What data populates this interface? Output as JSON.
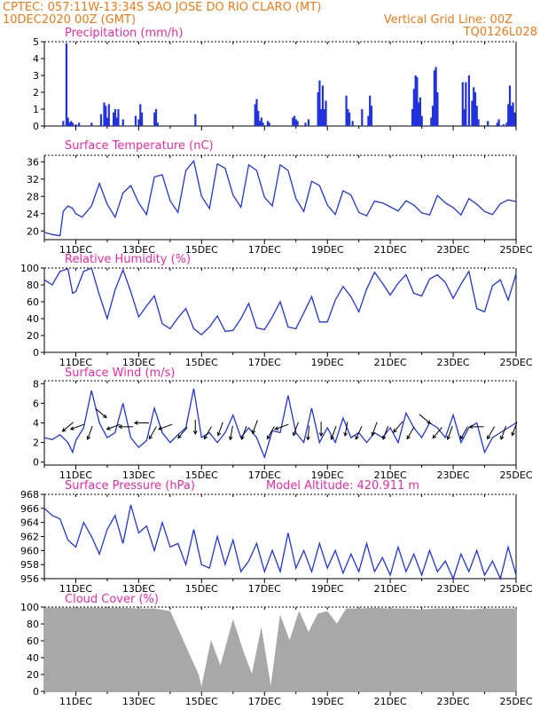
{
  "header": {
    "line1_left": "CPTEC:   057:11W-13:34S  SAO JOSE DO RIO CLARO (MT)",
    "line2_left": "10DEC2020 00Z (GMT)",
    "line2_right": "Vertical Grid Line: 00Z",
    "line3_right": "TQ0126L028"
  },
  "colors": {
    "header": "#f07a1a",
    "panel_title": "#ee2aa0",
    "series": "#2233dd",
    "cloud": "#a8a8a8",
    "frame": "#000000"
  },
  "x_axis": {
    "start": "10DEC2020 00Z",
    "end": "25DEC2020 00Z",
    "tick_labels": [
      "11DEC",
      "13DEC",
      "15DEC",
      "17DEC",
      "19DEC",
      "21DEC",
      "23DEC",
      "25DEC"
    ]
  },
  "model_altitude": "Model Altitude: 420.911 m",
  "chart_data": [
    {
      "type": "bar",
      "title": "Precipitation (mm/h)",
      "ylim": [
        0,
        5
      ],
      "yticks": [
        0,
        1,
        2,
        3,
        4,
        5
      ],
      "x": [
        0.6,
        0.7,
        0.75,
        0.8,
        0.85,
        0.9,
        1.0,
        1.1,
        1.5,
        1.8,
        1.9,
        1.95,
        2.0,
        2.05,
        2.2,
        2.25,
        2.3,
        2.35,
        2.5,
        2.9,
        3.0,
        3.05,
        3.1,
        3.5,
        3.55,
        3.6,
        4.8,
        6.7,
        6.75,
        6.8,
        6.85,
        6.9,
        6.95,
        7.1,
        7.15,
        7.9,
        7.95,
        8.0,
        8.05,
        8.3,
        8.4,
        8.7,
        8.75,
        8.8,
        8.85,
        8.9,
        8.95,
        9.6,
        9.65,
        9.7,
        9.8,
        10.1,
        10.3,
        10.35,
        10.4,
        11.7,
        11.75,
        11.8,
        11.85,
        11.9,
        11.95,
        12.0,
        12.3,
        12.35,
        12.4,
        12.45,
        12.5,
        13.3,
        13.35,
        13.4,
        13.5,
        13.6,
        13.65,
        13.7,
        13.75,
        13.8,
        14.1,
        14.4,
        14.45,
        14.6,
        14.7,
        14.75,
        14.8,
        14.85,
        14.9,
        14.95
      ],
      "values": [
        0.3,
        4.9,
        0.5,
        0.2,
        0.3,
        0.2,
        0.1,
        0.2,
        0.2,
        0.7,
        1.4,
        1.2,
        0.5,
        1.3,
        0.8,
        1.0,
        0.5,
        1.0,
        0.4,
        0.6,
        0.4,
        1.3,
        0.8,
        0.8,
        1.0,
        0.2,
        0.7,
        1.3,
        1.6,
        0.9,
        0.3,
        0.5,
        0.2,
        0.3,
        0.2,
        0.5,
        0.6,
        0.4,
        0.3,
        0.2,
        0.4,
        2.0,
        2.7,
        1.0,
        2.4,
        1.0,
        1.5,
        1.8,
        1.0,
        0.8,
        0.3,
        1.0,
        0.6,
        1.8,
        1.2,
        1.0,
        2.2,
        3.0,
        2.9,
        1.4,
        1.7,
        0.6,
        0.5,
        1.2,
        3.3,
        3.5,
        2.0,
        2.6,
        1.0,
        2.6,
        3.0,
        1.5,
        2.3,
        2.0,
        1.2,
        0.4,
        0.3,
        0.2,
        0.4,
        0.1,
        0.2,
        1.3,
        2.4,
        1.2,
        1.4,
        0.8
      ]
    },
    {
      "type": "line",
      "title": "Surface Temperature (nC)",
      "ylim": [
        18,
        37.5
      ],
      "yticks": [
        20,
        24,
        28,
        32,
        36
      ],
      "x": [
        0.0,
        0.25,
        0.5,
        0.6,
        0.75,
        0.9,
        1.0,
        1.2,
        1.5,
        1.75,
        2.0,
        2.25,
        2.5,
        2.75,
        3.0,
        3.25,
        3.5,
        3.75,
        4.0,
        4.25,
        4.5,
        4.75,
        5.0,
        5.25,
        5.5,
        5.75,
        6.0,
        6.25,
        6.5,
        6.75,
        7.0,
        7.25,
        7.5,
        7.75,
        8.0,
        8.25,
        8.5,
        8.75,
        9.0,
        9.25,
        9.5,
        9.75,
        10.0,
        10.25,
        10.5,
        10.75,
        11.0,
        11.25,
        11.5,
        11.75,
        12.0,
        12.25,
        12.5,
        12.75,
        13.0,
        13.25,
        13.5,
        13.75,
        14.0,
        14.25,
        14.5,
        14.75,
        15.0
      ],
      "values": [
        19.7,
        19.2,
        18.9,
        24.5,
        25.8,
        25.2,
        24.0,
        23.2,
        25.8,
        31.0,
        26.2,
        23.2,
        28.8,
        30.5,
        26.5,
        23.8,
        32.5,
        33.0,
        27.0,
        24.3,
        34.0,
        36.2,
        28.0,
        25.2,
        35.5,
        34.5,
        28.3,
        25.5,
        35.3,
        34.0,
        27.8,
        25.8,
        35.3,
        34.0,
        27.5,
        24.5,
        31.5,
        30.5,
        26.0,
        23.8,
        29.3,
        28.3,
        24.3,
        23.5,
        26.9,
        26.5,
        25.6,
        24.6,
        27.0,
        26.0,
        24.2,
        23.7,
        28.2,
        26.5,
        25.4,
        23.7,
        27.5,
        26.2,
        24.5,
        23.8,
        26.3,
        27.2,
        26.8
      ]
    },
    {
      "type": "line",
      "title": "Relative Humidity (%)",
      "ylim": [
        0,
        100
      ],
      "yticks": [
        0,
        20,
        40,
        60,
        80,
        100
      ],
      "x": [
        0.0,
        0.25,
        0.5,
        0.75,
        0.9,
        1.0,
        1.25,
        1.5,
        1.75,
        2.0,
        2.25,
        2.5,
        2.75,
        3.0,
        3.25,
        3.5,
        3.75,
        4.0,
        4.25,
        4.5,
        4.75,
        5.0,
        5.25,
        5.5,
        5.75,
        6.0,
        6.25,
        6.5,
        6.75,
        7.0,
        7.25,
        7.5,
        7.75,
        8.0,
        8.25,
        8.5,
        8.75,
        9.0,
        9.25,
        9.5,
        9.75,
        10.0,
        10.25,
        10.5,
        10.75,
        11.0,
        11.25,
        11.5,
        11.75,
        12.0,
        12.25,
        12.5,
        12.75,
        13.0,
        13.25,
        13.5,
        13.75,
        14.0,
        14.25,
        14.5,
        14.75,
        15.0
      ],
      "values": [
        86,
        80,
        96,
        99,
        70,
        72,
        96,
        100,
        68,
        40,
        74,
        98,
        72,
        42,
        55,
        67,
        34,
        28,
        41,
        52,
        28,
        21,
        30,
        43,
        25,
        26,
        40,
        58,
        29,
        27,
        42,
        60,
        30,
        28,
        47,
        66,
        36,
        36,
        62,
        78,
        66,
        48,
        75,
        95,
        82,
        68,
        82,
        92,
        70,
        67,
        87,
        92,
        83,
        64,
        81,
        96,
        52,
        48,
        79,
        86,
        62,
        93
      ]
    },
    {
      "type": "line",
      "title": "Surface Wind (m/s)",
      "ylim": [
        -0.3,
        8.3
      ],
      "yticks": [
        0,
        2,
        4,
        6,
        8
      ],
      "x": [
        0.0,
        0.25,
        0.5,
        0.75,
        0.9,
        1.0,
        1.25,
        1.5,
        1.75,
        2.0,
        2.25,
        2.5,
        2.75,
        3.0,
        3.25,
        3.5,
        3.75,
        4.0,
        4.25,
        4.5,
        4.75,
        5.0,
        5.25,
        5.5,
        5.75,
        6.0,
        6.25,
        6.5,
        6.75,
        7.0,
        7.25,
        7.5,
        7.75,
        8.0,
        8.25,
        8.5,
        8.75,
        9.0,
        9.25,
        9.5,
        9.75,
        10.0,
        10.25,
        10.5,
        10.75,
        11.0,
        11.25,
        11.5,
        11.75,
        12.0,
        12.25,
        12.5,
        12.75,
        13.0,
        13.25,
        13.5,
        13.75,
        14.0,
        14.25,
        14.5,
        14.75,
        15.0
      ],
      "values": [
        2.5,
        2.3,
        2.8,
        2.0,
        1.0,
        2.2,
        3.5,
        7.3,
        4.0,
        2.5,
        3.0,
        6.0,
        2.5,
        1.5,
        2.2,
        5.5,
        3.0,
        2.0,
        2.8,
        3.5,
        7.5,
        2.5,
        3.0,
        2.0,
        3.0,
        4.8,
        2.5,
        3.5,
        2.5,
        0.5,
        3.2,
        3.0,
        6.8,
        3.0,
        2.0,
        5.5,
        2.0,
        3.5,
        2.0,
        4.5,
        2.5,
        3.0,
        2.0,
        3.0,
        2.5,
        3.5,
        2.0,
        5.0,
        3.5,
        2.5,
        4.0,
        3.5,
        2.5,
        4.8,
        2.0,
        3.5,
        4.0,
        1.0,
        2.5,
        3.0,
        3.5,
        4.0
      ],
      "arrows": [
        {
          "x": 0.75,
          "y": 3.6,
          "dir_deg": 220
        },
        {
          "x": 1.05,
          "y": 3.6,
          "dir_deg": 200
        },
        {
          "x": 1.45,
          "y": 3.0,
          "dir_deg": 250
        },
        {
          "x": 1.8,
          "y": 5.0,
          "dir_deg": 320
        },
        {
          "x": 2.2,
          "y": 3.6,
          "dir_deg": 200
        },
        {
          "x": 2.6,
          "y": 3.6,
          "dir_deg": 180
        },
        {
          "x": 3.1,
          "y": 4.0,
          "dir_deg": 180
        },
        {
          "x": 3.45,
          "y": 3.0,
          "dir_deg": 240
        },
        {
          "x": 3.85,
          "y": 3.6,
          "dir_deg": 200
        },
        {
          "x": 4.4,
          "y": 3.0,
          "dir_deg": 230
        },
        {
          "x": 4.8,
          "y": 3.6,
          "dir_deg": 270
        },
        {
          "x": 5.2,
          "y": 3.0,
          "dir_deg": 240
        },
        {
          "x": 5.6,
          "y": 3.4,
          "dir_deg": 250
        },
        {
          "x": 5.95,
          "y": 3.0,
          "dir_deg": 260
        },
        {
          "x": 6.35,
          "y": 3.0,
          "dir_deg": 250
        },
        {
          "x": 6.7,
          "y": 3.6,
          "dir_deg": 250
        },
        {
          "x": 7.2,
          "y": 3.0,
          "dir_deg": 240
        },
        {
          "x": 7.55,
          "y": 3.6,
          "dir_deg": 200
        },
        {
          "x": 8.0,
          "y": 3.4,
          "dir_deg": 250
        },
        {
          "x": 8.4,
          "y": 3.0,
          "dir_deg": 265
        },
        {
          "x": 8.8,
          "y": 3.4,
          "dir_deg": 270
        },
        {
          "x": 9.2,
          "y": 3.0,
          "dir_deg": 250
        },
        {
          "x": 9.6,
          "y": 3.4,
          "dir_deg": 260
        },
        {
          "x": 10.0,
          "y": 3.0,
          "dir_deg": 245
        },
        {
          "x": 10.5,
          "y": 3.4,
          "dir_deg": 250
        },
        {
          "x": 10.85,
          "y": 3.0,
          "dir_deg": 250
        },
        {
          "x": 11.25,
          "y": 3.6,
          "dir_deg": 230
        },
        {
          "x": 11.65,
          "y": 3.0,
          "dir_deg": 240
        },
        {
          "x": 12.1,
          "y": 4.4,
          "dir_deg": 320
        },
        {
          "x": 12.5,
          "y": 3.0,
          "dir_deg": 230
        },
        {
          "x": 12.9,
          "y": 3.0,
          "dir_deg": 250
        },
        {
          "x": 13.35,
          "y": 3.0,
          "dir_deg": 240
        },
        {
          "x": 13.75,
          "y": 3.6,
          "dir_deg": 180
        },
        {
          "x": 14.2,
          "y": 3.0,
          "dir_deg": 240
        },
        {
          "x": 14.6,
          "y": 3.0,
          "dir_deg": 250
        },
        {
          "x": 14.95,
          "y": 3.4,
          "dir_deg": 250
        }
      ]
    },
    {
      "type": "line",
      "title": "Surface Pressure (hPa)",
      "ylim": [
        956,
        968
      ],
      "yticks": [
        956,
        958,
        960,
        962,
        964,
        966,
        968
      ],
      "x": [
        0.0,
        0.25,
        0.5,
        0.75,
        1.0,
        1.25,
        1.5,
        1.75,
        2.0,
        2.25,
        2.5,
        2.75,
        3.0,
        3.25,
        3.5,
        3.75,
        4.0,
        4.25,
        4.5,
        4.75,
        5.0,
        5.25,
        5.5,
        5.75,
        6.0,
        6.25,
        6.5,
        6.75,
        7.0,
        7.25,
        7.5,
        7.75,
        8.0,
        8.25,
        8.5,
        8.75,
        9.0,
        9.25,
        9.5,
        9.75,
        10.0,
        10.25,
        10.5,
        10.75,
        11.0,
        11.25,
        11.5,
        11.75,
        12.0,
        12.25,
        12.5,
        12.75,
        13.0,
        13.25,
        13.5,
        13.75,
        14.0,
        14.25,
        14.5,
        14.75,
        15.0
      ],
      "values": [
        966.0,
        965.0,
        964.5,
        961.5,
        960.5,
        964.0,
        962.0,
        959.5,
        963.0,
        965.0,
        961.0,
        966.5,
        962.5,
        963.5,
        960.0,
        964.0,
        960.5,
        961.0,
        958.0,
        963.0,
        958.0,
        957.5,
        962.0,
        958.0,
        961.5,
        957.0,
        958.5,
        961.0,
        957.0,
        960.0,
        957.0,
        962.5,
        957.5,
        960.0,
        957.0,
        961.0,
        957.5,
        960.0,
        956.8,
        959.5,
        957.0,
        961.0,
        957.0,
        959.0,
        956.5,
        960.5,
        957.0,
        959.5,
        956.5,
        960.0,
        957.0,
        958.5,
        956.0,
        959.5,
        957.0,
        960.0,
        956.5,
        958.5,
        956.0,
        960.5,
        956.5
      ]
    },
    {
      "type": "area",
      "title": "Cloud Cover (%)",
      "ylim": [
        0,
        100
      ],
      "yticks": [
        0,
        20,
        40,
        60,
        80,
        100
      ],
      "x": [
        0.0,
        0.5,
        1.0,
        1.5,
        2.0,
        2.5,
        3.0,
        3.5,
        4.0,
        4.3,
        4.6,
        4.9,
        5.0,
        5.3,
        5.6,
        6.0,
        6.3,
        6.6,
        6.9,
        7.2,
        7.5,
        7.8,
        8.1,
        8.4,
        8.7,
        9.0,
        9.3,
        9.6,
        10.0,
        10.5,
        11.0,
        11.5,
        12.0,
        12.5,
        13.0,
        13.5,
        14.0,
        14.5,
        15.0
      ],
      "values": [
        99,
        99,
        99,
        99,
        99,
        99,
        98,
        98,
        95,
        70,
        45,
        20,
        5,
        60,
        30,
        85,
        50,
        20,
        75,
        5,
        90,
        60,
        95,
        70,
        92,
        95,
        80,
        98,
        98,
        99,
        98,
        98,
        97,
        98,
        98,
        97,
        98,
        98,
        98
      ]
    }
  ]
}
